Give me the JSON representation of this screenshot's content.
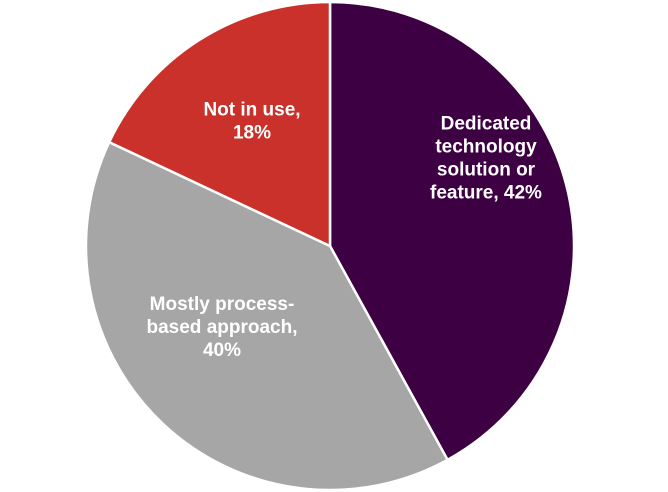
{
  "chart_data": {
    "type": "pie",
    "title": "",
    "start_angle_deg": 0,
    "direction": "clockwise",
    "slices": [
      {
        "label": "Dedicated technology solution or feature, 42%",
        "label_lines": [
          "Dedicated",
          "technology",
          "solution or",
          "feature, 42%"
        ],
        "value": 42,
        "color": "#3d0042"
      },
      {
        "label": "Mostly process-based approach, 40%",
        "label_lines": [
          "Mostly process-",
          "based approach,",
          "40%"
        ],
        "value": 40,
        "color": "#a6a6a6"
      },
      {
        "label": "Not in use, 18%",
        "label_lines": [
          "Not in use,",
          "18%"
        ],
        "value": 18,
        "color": "#c9312a"
      }
    ]
  }
}
